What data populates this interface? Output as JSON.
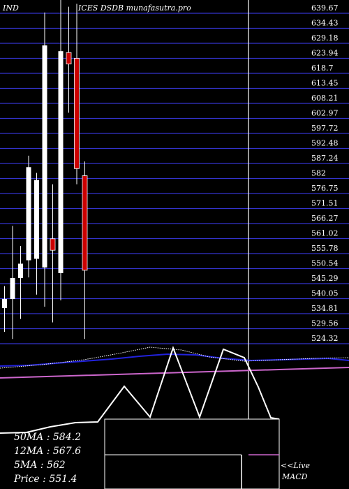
{
  "chart_data": {
    "type": "candlestick",
    "title_left": "IND",
    "title_right": "ICES DSDB munafasutra.pro",
    "price_axis": {
      "ticks": [
        639.67,
        634.43,
        629.18,
        623.94,
        618.7,
        613.45,
        608.21,
        602.97,
        597.72,
        592.48,
        587.24,
        582,
        576.75,
        571.51,
        566.27,
        561.02,
        555.78,
        550.54,
        545.29,
        540.05,
        534.81,
        529.56,
        524.32
      ],
      "tick_labels": [
        "639.67",
        "634.43",
        "629.18",
        "623.94",
        "618.7",
        "613.45",
        "608.21",
        "602.97",
        "597.72",
        "592.48",
        "587.24",
        "582",
        "576.75",
        "571.51",
        "566.27",
        "561.02",
        "555.78",
        "550.54",
        "545.29",
        "540.05",
        "534.81",
        "529.56",
        "524.32"
      ],
      "ylim": [
        522.2,
        643.5
      ]
    },
    "candles": [
      {
        "open": 534.8,
        "close": 538.0,
        "high": 542.5,
        "low": 526.5,
        "color": "white"
      },
      {
        "open": 538.0,
        "close": 545.3,
        "high": 563.5,
        "low": 524.0,
        "color": "white"
      },
      {
        "open": 545.3,
        "close": 550.3,
        "high": 556.5,
        "low": 531.0,
        "color": "white"
      },
      {
        "open": 551.5,
        "close": 584.0,
        "high": 588.0,
        "low": 545.5,
        "color": "white"
      },
      {
        "open": 552.0,
        "close": 579.5,
        "high": 582.0,
        "low": 539.5,
        "color": "white"
      },
      {
        "open": 549.0,
        "close": 626.5,
        "high": 638.0,
        "low": 535.3,
        "color": "white"
      },
      {
        "open": 559.0,
        "close": 555.0,
        "high": 578.0,
        "low": 529.8,
        "color": "red"
      },
      {
        "open": 547.0,
        "close": 624.5,
        "high": 644.0,
        "low": 537.5,
        "color": "white"
      },
      {
        "open": 624.0,
        "close": 620.0,
        "high": 640.0,
        "low": 603.0,
        "color": "red"
      },
      {
        "open": 622.0,
        "close": 583.5,
        "high": 641.0,
        "low": 578.0,
        "color": "red"
      },
      {
        "open": 581.0,
        "close": 548.0,
        "high": 586.0,
        "low": 524.0,
        "color": "red"
      }
    ],
    "moving_averages": [
      {
        "label": "50MA",
        "value": "584.2",
        "color": "#2222dd"
      },
      {
        "label": "12MA",
        "value": "567.6",
        "color": "#ffffff"
      },
      {
        "label": "5MA",
        "value": "562",
        "color": "#cc66cc"
      }
    ],
    "price": {
      "label": "Price",
      "value": "551.4"
    },
    "macd_label": "<<Live MACD",
    "macd_line": [
      620,
      619,
      611,
      605,
      604,
      553,
      597,
      498,
      597,
      500,
      512,
      554,
      598,
      600
    ],
    "colors": {
      "background": "#000000",
      "grid": "#3333cc",
      "bull_candle": "#ffffff",
      "bear_candle": "#cc0000",
      "ma_blue": "#2222dd",
      "ma_pink": "#cc66cc",
      "macd": "#ffffff"
    }
  }
}
